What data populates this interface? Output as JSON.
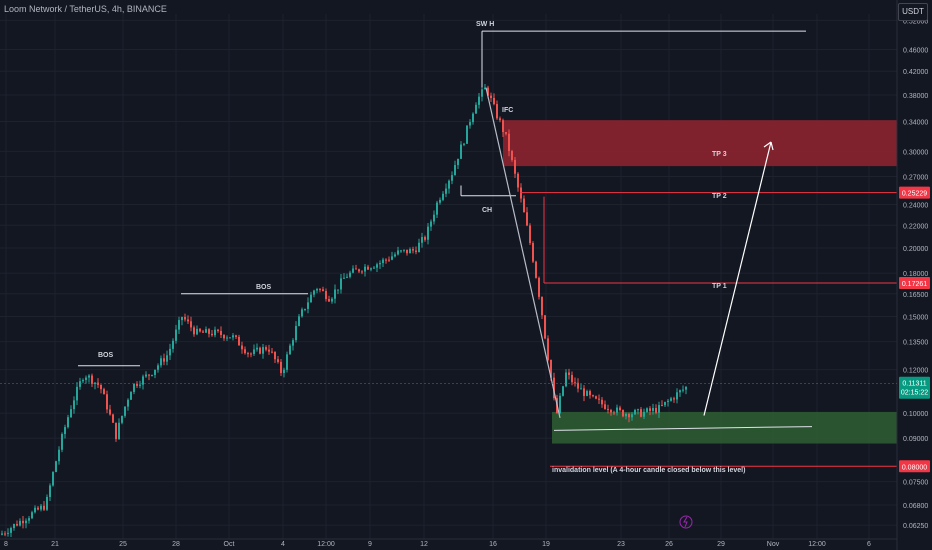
{
  "header": {
    "symbol_line": "Loom Network / TetherUS, 4h, BINANCE",
    "currency_button": "USDT"
  },
  "chart_data": {
    "type": "candlestick",
    "title": "Loom Network / TetherUS, 4h, BINANCE",
    "y_scale": "log",
    "ylim": [
      0.0602,
      0.534
    ],
    "y_ticks": [
      "0.52000",
      "0.46000",
      "0.42000",
      "0.38000",
      "0.34000",
      "0.30000",
      "0.27000",
      "0.24000",
      "0.22000",
      "0.20000",
      "0.18000",
      "0.16500",
      "0.15000",
      "0.13500",
      "0.12000",
      "0.10000",
      "0.09000",
      "0.07500",
      "0.06800",
      "0.06250"
    ],
    "x_ticks": [
      "8",
      "21",
      "25",
      "28",
      "Oct",
      "4",
      "12:00",
      "9",
      "12",
      "16",
      "19",
      "23",
      "26",
      "29",
      "Nov",
      "12:00",
      "6"
    ],
    "price_labels": [
      {
        "label": "0.25229",
        "value": 0.25229,
        "color": "#f23645"
      },
      {
        "label": "0.17261",
        "value": 0.17261,
        "color": "#f23645"
      },
      {
        "label": "0.08000",
        "value": 0.08,
        "color": "#f23645"
      }
    ],
    "current_price": {
      "label": "0.11311",
      "value": 0.11311,
      "countdown": "02:15:22",
      "color": "#089981"
    },
    "annotations": [
      {
        "text": "SW H",
        "kind": "swing-high"
      },
      {
        "text": "IFC"
      },
      {
        "text": "CH"
      },
      {
        "text": "BOS"
      },
      {
        "text": "BOS"
      },
      {
        "text": "TP 3"
      },
      {
        "text": "TP 2"
      },
      {
        "text": "TP 1"
      },
      {
        "text": "invalidation level (A 4-hour candle closed below this level)"
      }
    ],
    "levels": [
      {
        "name": "swing-high-line",
        "value": 0.497
      },
      {
        "name": "tp2-line",
        "value": 0.25229
      },
      {
        "name": "tp1-line",
        "value": 0.17261
      },
      {
        "name": "invalidation-line",
        "value": 0.08
      },
      {
        "name": "ch-line",
        "value": 0.249
      },
      {
        "name": "bos-right-line",
        "value": 0.165
      },
      {
        "name": "bos-left-line",
        "value": 0.122
      }
    ],
    "zones": [
      {
        "name": "supply-zone",
        "from": 0.282,
        "to": 0.342,
        "color": "#8c2330"
      },
      {
        "name": "demand-zone",
        "from": 0.088,
        "to": 0.1005,
        "color": "#2d5a32"
      }
    ],
    "colors": {
      "up": "#26a69a",
      "down": "#ef5350",
      "background": "#131722",
      "grid": "#1e222d"
    },
    "grid": true
  }
}
